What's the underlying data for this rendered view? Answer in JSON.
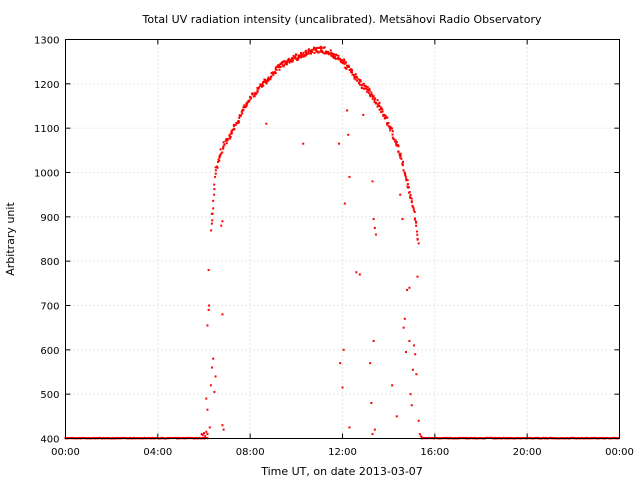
{
  "chart_data": {
    "type": "scatter",
    "title": "Total UV radiation intensity (uncalibrated). Metsähovi Radio Observatory",
    "xlabel": "Time UT, on date 2013-03-07",
    "ylabel": "Arbitrary unit",
    "x_unit": "hours UT",
    "xlim": [
      0,
      24
    ],
    "ylim": [
      400,
      1300
    ],
    "x_ticks": [
      0,
      4,
      8,
      12,
      16,
      20,
      24
    ],
    "x_tick_labels": [
      "00:00",
      "04:00",
      "08:00",
      "12:00",
      "16:00",
      "20:00",
      "00:00"
    ],
    "y_ticks": [
      400,
      500,
      600,
      700,
      800,
      900,
      1000,
      1100,
      1200,
      1300
    ],
    "y_tick_labels": [
      "400",
      "500",
      "600",
      "700",
      "800",
      "900",
      "1000",
      "1100",
      "1200",
      "1300"
    ],
    "grid": true,
    "legend": "none",
    "marker_color": "#ff0000",
    "series": [
      {
        "baseline_value": 400,
        "baseline_ranges": [
          [
            0,
            6.2
          ],
          [
            15.45,
            24
          ]
        ],
        "main_curve": [
          [
            6.3,
            870
          ],
          [
            6.35,
            900
          ],
          [
            6.42,
            950
          ],
          [
            6.5,
            1000
          ],
          [
            6.58,
            1020
          ],
          [
            6.7,
            1040
          ],
          [
            6.85,
            1060
          ],
          [
            7.0,
            1075
          ],
          [
            7.2,
            1090
          ],
          [
            7.4,
            1110
          ],
          [
            7.6,
            1130
          ],
          [
            7.8,
            1150
          ],
          [
            8.0,
            1165
          ],
          [
            8.2,
            1180
          ],
          [
            8.4,
            1192
          ],
          [
            8.6,
            1202
          ],
          [
            8.8,
            1212
          ],
          [
            9.0,
            1225
          ],
          [
            9.2,
            1235
          ],
          [
            9.4,
            1245
          ],
          [
            9.6,
            1250
          ],
          [
            9.8,
            1255
          ],
          [
            10.0,
            1260
          ],
          [
            10.2,
            1264
          ],
          [
            10.4,
            1268
          ],
          [
            10.6,
            1272
          ],
          [
            10.8,
            1275
          ],
          [
            11.0,
            1277
          ],
          [
            11.2,
            1276
          ],
          [
            11.4,
            1272
          ],
          [
            11.6,
            1266
          ],
          [
            11.8,
            1258
          ],
          [
            12.0,
            1250
          ],
          [
            12.2,
            1240
          ],
          [
            12.4,
            1228
          ],
          [
            12.6,
            1214
          ],
          [
            12.8,
            1200
          ],
          [
            13.0,
            1190
          ],
          [
            13.2,
            1180
          ],
          [
            13.4,
            1165
          ],
          [
            13.6,
            1150
          ],
          [
            13.8,
            1130
          ],
          [
            14.0,
            1110
          ],
          [
            14.2,
            1085
          ],
          [
            14.4,
            1055
          ],
          [
            14.55,
            1030
          ],
          [
            14.7,
            1000
          ],
          [
            14.85,
            970
          ],
          [
            15.0,
            940
          ],
          [
            15.1,
            910
          ],
          [
            15.2,
            880
          ],
          [
            15.25,
            860
          ],
          [
            15.3,
            840
          ]
        ],
        "scattered_points": [
          [
            5.9,
            410
          ],
          [
            5.95,
            408
          ],
          [
            6.0,
            412
          ],
          [
            6.05,
            405
          ],
          [
            6.1,
            415
          ],
          [
            6.15,
            410
          ],
          [
            6.1,
            490
          ],
          [
            6.15,
            465
          ],
          [
            6.15,
            655
          ],
          [
            6.2,
            690
          ],
          [
            6.22,
            700
          ],
          [
            6.2,
            780
          ],
          [
            6.25,
            425
          ],
          [
            6.3,
            520
          ],
          [
            6.35,
            560
          ],
          [
            6.4,
            580
          ],
          [
            6.45,
            505
          ],
          [
            6.5,
            540
          ],
          [
            6.8,
            430
          ],
          [
            6.85,
            420
          ],
          [
            6.8,
            680
          ],
          [
            6.75,
            880
          ],
          [
            6.8,
            890
          ],
          [
            8.7,
            1110
          ],
          [
            10.3,
            1065
          ],
          [
            11.85,
            1065
          ],
          [
            11.9,
            570
          ],
          [
            12.0,
            515
          ],
          [
            12.05,
            600
          ],
          [
            12.1,
            930
          ],
          [
            12.2,
            1140
          ],
          [
            12.25,
            1085
          ],
          [
            12.3,
            990
          ],
          [
            12.3,
            425
          ],
          [
            12.6,
            775
          ],
          [
            12.75,
            770
          ],
          [
            12.9,
            1130
          ],
          [
            13.2,
            570
          ],
          [
            13.25,
            480
          ],
          [
            13.3,
            410
          ],
          [
            13.4,
            420
          ],
          [
            13.35,
            620
          ],
          [
            13.3,
            980
          ],
          [
            13.35,
            895
          ],
          [
            13.4,
            875
          ],
          [
            13.45,
            860
          ],
          [
            14.15,
            520
          ],
          [
            14.35,
            450
          ],
          [
            14.5,
            950
          ],
          [
            14.6,
            895
          ],
          [
            14.65,
            650
          ],
          [
            14.7,
            670
          ],
          [
            14.75,
            595
          ],
          [
            14.8,
            735
          ],
          [
            14.9,
            620
          ],
          [
            14.9,
            740
          ],
          [
            14.95,
            500
          ],
          [
            15.0,
            475
          ],
          [
            15.05,
            555
          ],
          [
            15.1,
            610
          ],
          [
            15.15,
            590
          ],
          [
            15.2,
            545
          ],
          [
            15.25,
            765
          ],
          [
            15.3,
            440
          ],
          [
            15.35,
            410
          ],
          [
            15.4,
            405
          ],
          [
            15.45,
            402
          ]
        ]
      }
    ]
  }
}
